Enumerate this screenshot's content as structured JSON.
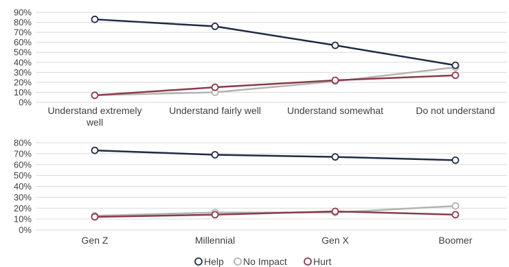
{
  "chart_data": [
    {
      "type": "line",
      "categories": [
        [
          "Understand extremely",
          "well"
        ],
        [
          "Understand fairly well"
        ],
        [
          "Understand somewhat"
        ],
        [
          "Do not understand"
        ]
      ],
      "ylim": [
        0,
        90
      ],
      "yticks": [
        "0%",
        "10%",
        "20%",
        "30%",
        "40%",
        "50%",
        "60%",
        "70%",
        "80%",
        "90%"
      ],
      "grid": true,
      "series": [
        {
          "name": "Help",
          "color": "#1f2a44",
          "values": [
            83,
            76,
            57,
            37
          ]
        },
        {
          "name": "No Impact",
          "color": "#b3b3b3",
          "values": [
            7,
            10,
            21,
            35
          ]
        },
        {
          "name": "Hurt",
          "color": "#8b3a4a",
          "values": [
            7,
            15,
            22,
            27
          ]
        }
      ]
    },
    {
      "type": "line",
      "categories": [
        [
          "Gen Z"
        ],
        [
          "Millennial"
        ],
        [
          "Gen X"
        ],
        [
          "Boomer"
        ]
      ],
      "ylim": [
        0,
        80
      ],
      "yticks": [
        "0%",
        "10%",
        "20%",
        "30%",
        "40%",
        "50%",
        "60%",
        "70%",
        "80%"
      ],
      "grid": true,
      "series": [
        {
          "name": "Help",
          "color": "#1f2a44",
          "values": [
            73,
            69,
            67,
            64
          ]
        },
        {
          "name": "No Impact",
          "color": "#b3b3b3",
          "values": [
            13,
            16,
            16,
            22
          ]
        },
        {
          "name": "Hurt",
          "color": "#8b3a4a",
          "values": [
            12,
            14,
            17,
            14
          ]
        }
      ]
    }
  ],
  "legend": {
    "position": "bottom",
    "items": [
      {
        "label": "Help",
        "color": "#1f2a44"
      },
      {
        "label": "No Impact",
        "color": "#b3b3b3"
      },
      {
        "label": "Hurt",
        "color": "#8b3a4a"
      }
    ]
  }
}
